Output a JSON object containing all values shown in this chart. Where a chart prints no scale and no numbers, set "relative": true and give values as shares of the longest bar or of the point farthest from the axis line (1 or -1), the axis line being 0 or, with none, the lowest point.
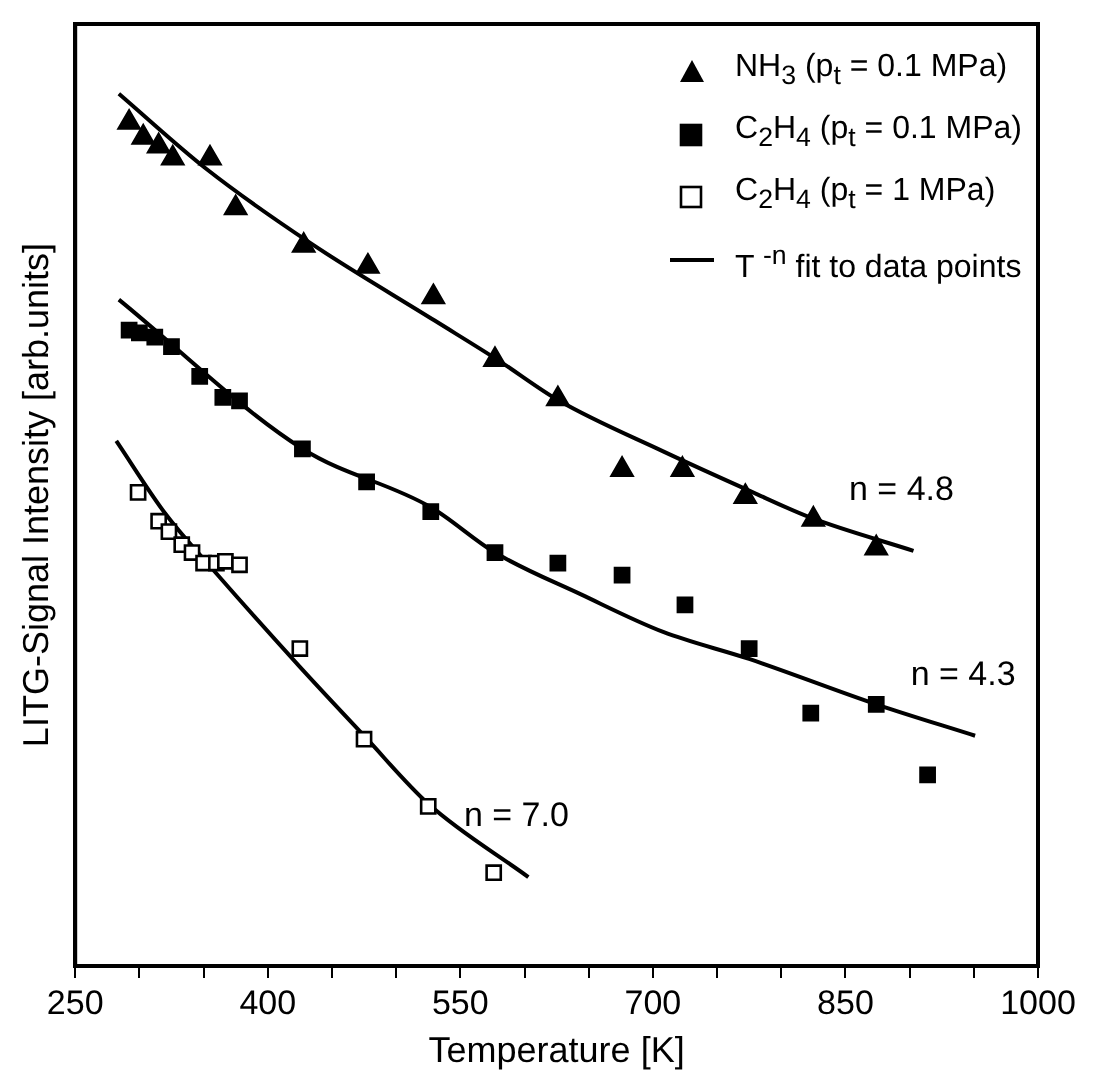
{
  "chart_data": {
    "type": "scatter",
    "relative": true,
    "xlabel": "Temperature [K]",
    "ylabel": "LITG-Signal Intensity [arb.units]",
    "xlim": [
      250,
      1000
    ],
    "xticks": [
      250,
      {
        "value": 300,
        "label": null
      },
      {
        "value": 350,
        "label": null
      },
      400,
      {
        "value": 450,
        "label": null
      },
      {
        "value": 500,
        "label": null
      },
      550,
      {
        "value": 600,
        "label": null
      },
      {
        "value": 650,
        "label": null
      },
      700,
      {
        "value": 750,
        "label": null
      },
      {
        "value": 800,
        "label": null
      },
      850,
      {
        "value": 900,
        "label": null
      },
      {
        "value": 950,
        "label": null
      },
      1000
    ],
    "legend": "top right",
    "grid": false,
    "series": [
      {
        "name": "NH$_{3}$   (p$_{t}$ = 0.1 MPa)",
        "type": "scatter",
        "marker": "triangle",
        "color": "#000000",
        "x": [
          292,
          303,
          315,
          326,
          355,
          375,
          428,
          478,
          529,
          577,
          626,
          676,
          723,
          772,
          825,
          874
        ],
        "values": [
          0.967,
          0.95,
          0.94,
          0.926,
          0.926,
          0.869,
          0.826,
          0.802,
          0.767,
          0.695,
          0.65,
          0.569,
          0.569,
          0.538,
          0.512,
          0.479
        ]
      },
      {
        "name": "C$_{2}$H$_{4}$  (p$_{t}$ = 0.1 MPa)",
        "type": "scatter",
        "marker": "square",
        "color": "#000000",
        "x": [
          292,
          300,
          312,
          325,
          347,
          365,
          378,
          427,
          477,
          527,
          577,
          626,
          676,
          725,
          775,
          823,
          874,
          914
        ],
        "values": [
          0.729,
          0.726,
          0.721,
          0.71,
          0.676,
          0.652,
          0.648,
          0.593,
          0.555,
          0.521,
          0.474,
          0.462,
          0.448,
          0.414,
          0.364,
          0.29,
          0.3,
          0.219
        ]
      },
      {
        "name": "C$_{2}$H$_{4}$  (p$_{t}$ = 1 MPa)",
        "type": "scatter",
        "marker": "square",
        "color": "#000000",
        "x": [
          299,
          315,
          323,
          333,
          341,
          350,
          360,
          367,
          378,
          425,
          475,
          525,
          576
        ],
        "values": [
          0.543,
          0.51,
          0.498,
          0.483,
          0.474,
          0.462,
          0.462,
          0.464,
          0.46,
          0.364,
          0.26,
          0.183,
          0.107
        ]
      },
      {
        "name": "T $^{-n}$ fit to data points",
        "type": "line",
        "marker": "none",
        "line_style": "solid",
        "color": "#000000",
        "x": [
          284,
          352,
          433,
          530,
          579,
          627,
          708,
          775,
          823,
          903
        ],
        "values": [
          1.0,
          0.914,
          0.829,
          0.74,
          0.695,
          0.648,
          0.59,
          0.545,
          0.514,
          0.476
        ]
      },
      {
        "type": "line",
        "marker": "none",
        "line_style": "solid",
        "color": "#000000",
        "x": [
          284,
          427,
          527,
          577,
          644,
          708,
          775,
          874,
          951
        ],
        "values": [
          0.764,
          0.593,
          0.526,
          0.474,
          0.426,
          0.383,
          0.352,
          0.3,
          0.264
        ]
      },
      {
        "type": "line",
        "marker": "none",
        "line_style": "solid",
        "color": "#000000",
        "x": [
          282,
          320,
          360,
          425,
          475,
          525,
          603
        ],
        "values": [
          0.602,
          0.519,
          0.45,
          0.343,
          0.264,
          0.186,
          0.102
        ]
      }
    ],
    "annotations": [
      "n = 4.8",
      "n = 4.3",
      "n = 7.0"
    ]
  }
}
